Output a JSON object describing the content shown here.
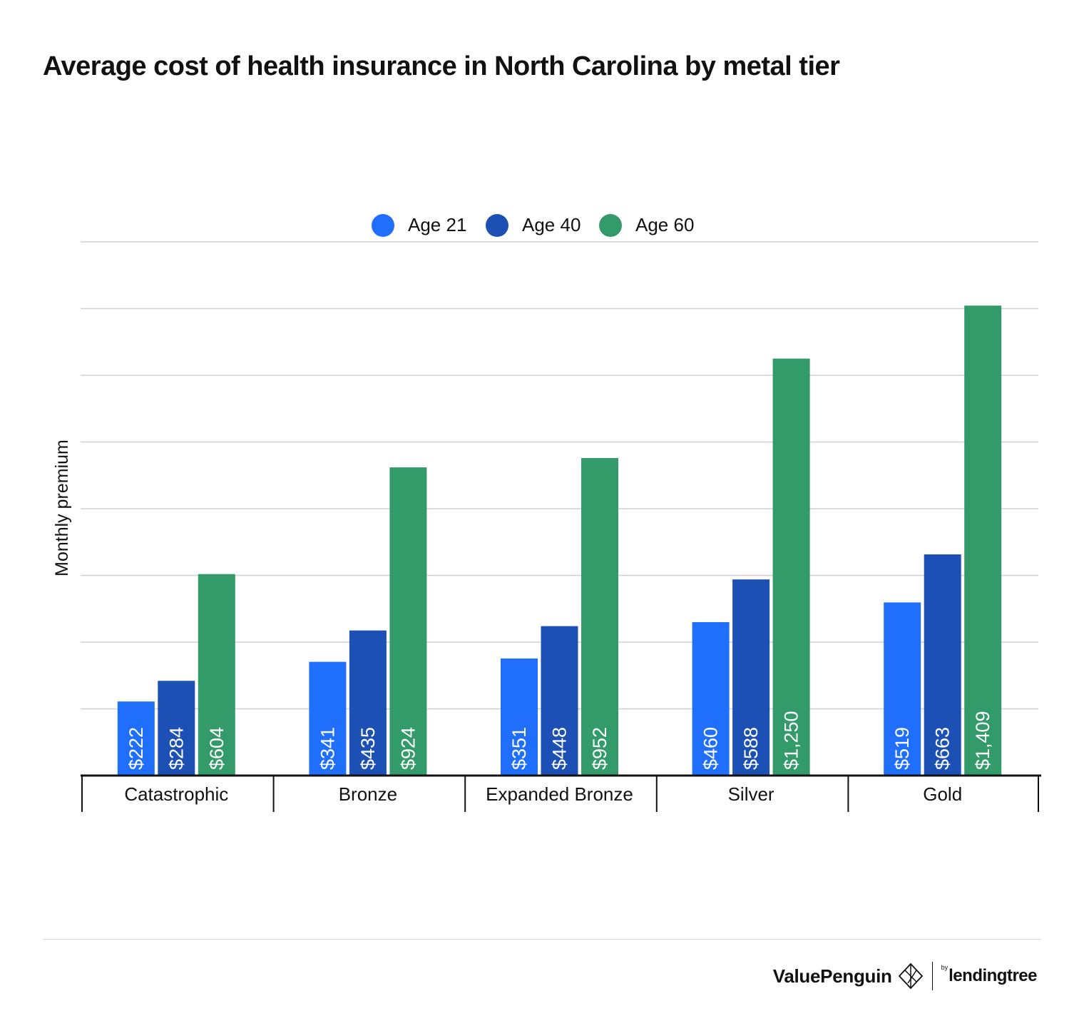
{
  "title": "Average cost of health insurance in North Carolina by metal tier",
  "chart_data": {
    "type": "bar",
    "categories": [
      "Catastrophic",
      "Bronze",
      "Expanded Bronze",
      "Silver",
      "Gold"
    ],
    "series": [
      {
        "name": "Age 21",
        "color": "#1f6efc",
        "values": [
          222,
          341,
          351,
          460,
          519
        ],
        "labels": [
          "$222",
          "$341",
          "$351",
          "$460",
          "$519"
        ]
      },
      {
        "name": "Age 40",
        "color": "#1c50b4",
        "values": [
          284,
          435,
          448,
          588,
          663
        ],
        "labels": [
          "$284",
          "$435",
          "$448",
          "$588",
          "$663"
        ]
      },
      {
        "name": "Age 60",
        "color": "#339a69",
        "values": [
          604,
          924,
          952,
          1250,
          1409
        ],
        "labels": [
          "$604",
          "$924",
          "$952",
          "$1,250",
          "$1,409"
        ]
      }
    ],
    "ylabel": "Monthly premium",
    "ylim": [
      0,
      1600
    ],
    "gridlines": [
      0,
      200,
      400,
      600,
      800,
      1000,
      1200,
      1400,
      1600
    ],
    "grid": true,
    "legend": "top-center",
    "data_labels": "inside-bar-bottom, rotated vertical, white"
  },
  "branding": {
    "left": "ValuePenguin",
    "by": "by",
    "right": "lendingtree",
    "icon": "penguin-logo-icon"
  }
}
